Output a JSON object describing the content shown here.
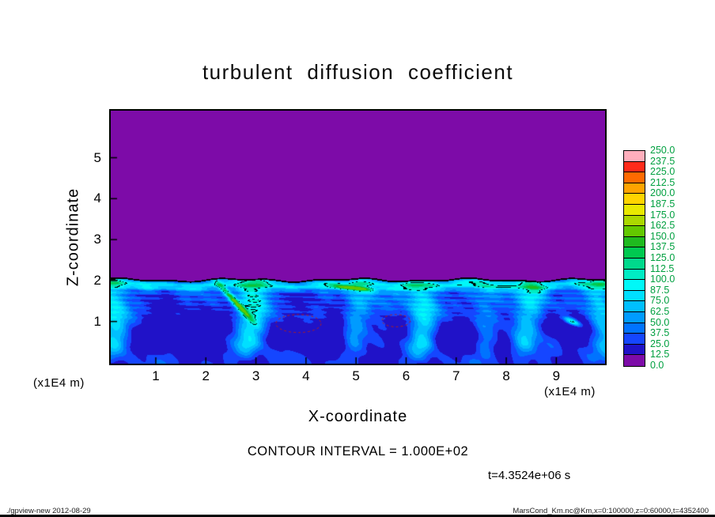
{
  "title": "turbulent diffusion coefficient",
  "ylabel": "Z-coordinate",
  "xlabel": "X-coordinate",
  "y_unit": "(x1E4 m)",
  "x_unit": "(x1E4 m)",
  "contour_note": "CONTOUR INTERVAL = 1.000E+02",
  "time_label": "t=4.3524e+06 s",
  "footer_left": "./gpview-new  2012-08-29",
  "footer_right": "MarsCond_Km.nc@Km,x=0:100000,z=0:60000,t=4352400",
  "x_ticks": [
    1,
    2,
    3,
    4,
    5,
    6,
    7,
    8,
    9
  ],
  "y_ticks": [
    1,
    2,
    3,
    4,
    5
  ],
  "colorbar": {
    "levels": [
      0,
      12.5,
      25,
      37.5,
      50,
      62.5,
      75,
      87.5,
      100,
      112.5,
      125,
      137.5,
      150,
      162.5,
      175,
      187.5,
      200,
      212.5,
      225,
      237.5,
      250
    ],
    "colors": [
      "#7d0ba8",
      "#2012c8",
      "#1546ff",
      "#0073ff",
      "#009bff",
      "#00bfff",
      "#00dfff",
      "#00f8f8",
      "#00ecc4",
      "#00d98c",
      "#00c950",
      "#1fba1f",
      "#63c800",
      "#abd800",
      "#e9e900",
      "#ffd400",
      "#ffa300",
      "#ff6a00",
      "#ff2a1a",
      "#ffaebc"
    ],
    "label_color": "#00a040"
  },
  "chart_data": {
    "type": "heatmap",
    "title": "turbulent diffusion coefficient",
    "xlabel": "X-coordinate (x1E4 m)",
    "ylabel": "Z-coordinate (x1E4 m)",
    "x_range": [
      0.1,
      9.97
    ],
    "z_range": [
      0,
      6.15
    ],
    "value_range": [
      0,
      250
    ],
    "value_level_step": 12.5,
    "contour_interval": 100,
    "time": "t=4.3524e+06 s",
    "description": "Turbulent diffusion coefficient field: value 0 (purple) everywhere above z=2x1E4 m; convective boundary layer below z=2 with values ~12.5-150 showing cyan updraft plumes, dark-blue circulation cores, a bright mixed band just below the interface, green high-diffusivity streaks near the layer top, and a black contour along the interface (100-level contour around the green streaks).",
    "render": {
      "interface_base": 2.02,
      "base_value": 28,
      "plumes": [
        [
          0.1,
          55,
          0.1
        ],
        [
          2.85,
          62,
          0.12
        ],
        [
          5.05,
          40,
          0.09
        ],
        [
          6.25,
          58,
          0.11
        ],
        [
          7.6,
          32,
          0.09
        ],
        [
          8.45,
          55,
          0.11
        ],
        [
          9.9,
          50,
          0.1
        ]
      ],
      "cores": [
        [
          1.45,
          0.7,
          0.9,
          0.22,
          34
        ],
        [
          4.3,
          0.65,
          1.0,
          0.2,
          34
        ],
        [
          7.15,
          0.7,
          0.8,
          0.2,
          32
        ],
        [
          9.2,
          0.9,
          0.45,
          0.25,
          22
        ]
      ],
      "streaks": [
        [
          2.57,
          1.5,
          -0.93,
          0.38,
          0.045,
          115
        ],
        [
          4.95,
          1.82,
          -0.15,
          0.3,
          0.04,
          100
        ],
        [
          9.32,
          1.0,
          -0.5,
          0.13,
          0.05,
          95
        ]
      ],
      "dashed_contours": [
        {
          "x": 3.85,
          "z": 0.95,
          "rx": 0.45,
          "rz": 0.22
        },
        {
          "x": 5.8,
          "z": 1.02,
          "rx": 0.28,
          "rz": 0.15
        }
      ]
    }
  }
}
